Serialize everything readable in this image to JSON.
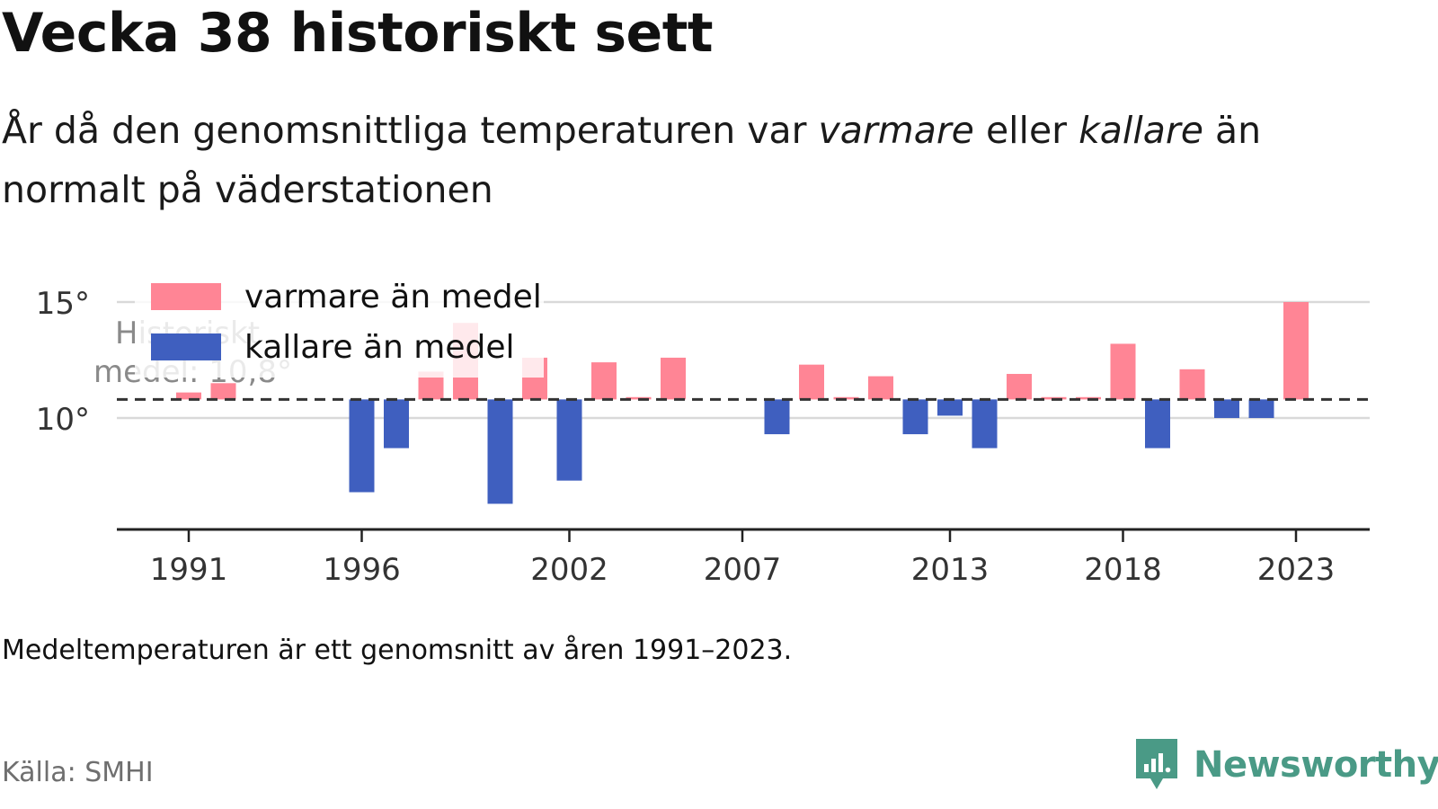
{
  "header": {
    "title": "Vecka 38 historiskt sett",
    "subtitle_part1": "År då den genomsnittliga temperaturen var ",
    "subtitle_em1": "varmare",
    "subtitle_part2": " eller ",
    "subtitle_em2": "kallare",
    "subtitle_part3": " än normalt på väderstationen"
  },
  "footer": {
    "note": "Medeltemperaturen är ett genomsnitt av åren 1991–2023.",
    "source": "Källa: SMHI",
    "brand": "Newsworthy"
  },
  "colors": {
    "warmer": "#ff8595",
    "colder": "#3f5fbf",
    "brand": "#4a9a86"
  },
  "chart_data": {
    "type": "bar",
    "title": "Vecka 38 historiskt sett",
    "baseline": 10.8,
    "baseline_label_line1": "Historiskt",
    "baseline_label_line2": "medel: 10,8°",
    "ylim": [
      5.2,
      15.9
    ],
    "y_ticks": [
      10,
      15
    ],
    "y_tick_labels": [
      "10°",
      "15°"
    ],
    "x_ticks": [
      1991,
      1996,
      2002,
      2007,
      2013,
      2018,
      2023
    ],
    "legend": {
      "position": "top-left",
      "items": [
        "varmare än medel",
        "kallare än medel"
      ]
    },
    "x": [
      1991,
      1992,
      1993,
      1994,
      1995,
      1996,
      1997,
      1998,
      1999,
      2000,
      2001,
      2002,
      2003,
      2004,
      2005,
      2006,
      2007,
      2008,
      2009,
      2010,
      2011,
      2012,
      2013,
      2014,
      2015,
      2016,
      2017,
      2018,
      2019,
      2020,
      2021,
      2022,
      2023
    ],
    "values": [
      11.1,
      11.5,
      null,
      null,
      null,
      6.8,
      8.7,
      12.0,
      14.1,
      6.3,
      12.6,
      7.3,
      12.4,
      10.9,
      12.6,
      null,
      null,
      9.3,
      12.3,
      10.9,
      11.8,
      9.3,
      10.1,
      8.7,
      11.9,
      10.9,
      10.9,
      13.2,
      8.7,
      12.1,
      10.0,
      10.0,
      15.0
    ]
  }
}
